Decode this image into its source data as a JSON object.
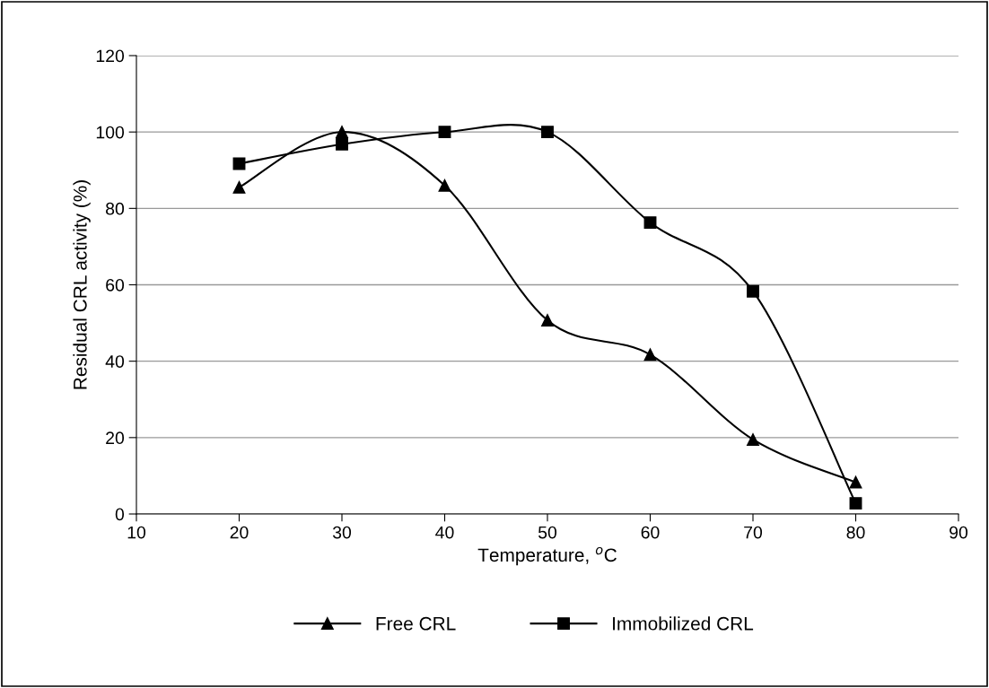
{
  "chart_data": {
    "type": "line",
    "xlabel": "Temperature, $^{o}$C",
    "ylabel": "Residual CRL activity (%)",
    "x": [
      20,
      30,
      40,
      50,
      60,
      70,
      80
    ],
    "series": [
      {
        "name": "Free CRL",
        "color": "#000000",
        "marker": "triangle",
        "values": [
          85.5,
          100,
          86,
          50.7,
          41.7,
          19.5,
          8.3
        ]
      },
      {
        "name": "Immobilized CRL",
        "color": "#000000",
        "marker": "square",
        "values": [
          91.7,
          96.8,
          100,
          100,
          76.3,
          58.3,
          2.8
        ]
      }
    ],
    "xlim": [
      10,
      90
    ],
    "xticks": [
      10,
      20,
      30,
      40,
      50,
      60,
      70,
      80,
      90
    ],
    "ylim": [
      0,
      120
    ],
    "yticks": [
      0,
      20,
      40,
      60,
      80,
      100,
      120
    ],
    "grid": "y",
    "legend": "bottom",
    "line_style": "solid"
  }
}
